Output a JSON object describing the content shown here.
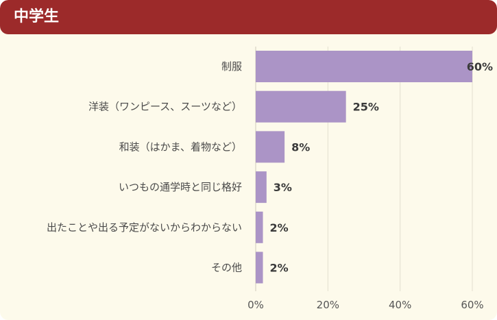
{
  "header": {
    "title": "中学生"
  },
  "colors": {
    "header_bg": "#9c2a2a",
    "bar": "#ab94c6",
    "panel_bg": "#fdfaeb",
    "grid": "#e3dfcf"
  },
  "chart_data": {
    "type": "bar",
    "orientation": "horizontal",
    "title": "",
    "xlabel": "",
    "ylabel": "",
    "categories": [
      "制服",
      "洋装（ワンピース、スーツなど）",
      "和装（はかま、着物など）",
      "いつもの通学時と同じ格好",
      "出たことや出る予定がないからわからない",
      "その他"
    ],
    "values": [
      60,
      25,
      8,
      3,
      2,
      2
    ],
    "value_labels": [
      "60%",
      "25%",
      "8%",
      "3%",
      "2%",
      "2%"
    ],
    "xlim": [
      0,
      60
    ],
    "xticks": [
      0,
      20,
      40,
      60
    ],
    "xtick_labels": [
      "0%",
      "20%",
      "40%",
      "60%"
    ],
    "grid": true,
    "legend": "none"
  }
}
